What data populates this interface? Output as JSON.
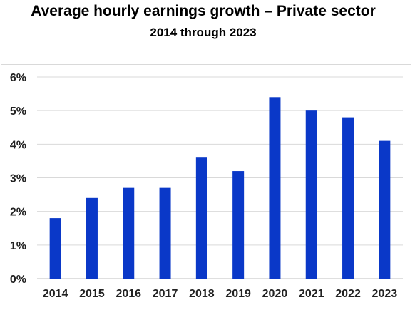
{
  "chart_data": {
    "type": "bar",
    "title": "Average hourly earnings growth – Private sector",
    "subtitle": "2014 through 2023",
    "xlabel": "",
    "ylabel": "",
    "categories": [
      "2014",
      "2015",
      "2016",
      "2017",
      "2018",
      "2019",
      "2020",
      "2021",
      "2022",
      "2023"
    ],
    "values": [
      1.8,
      2.4,
      2.7,
      2.7,
      3.6,
      3.2,
      5.4,
      5.0,
      4.8,
      4.1
    ],
    "ylim": [
      0,
      6
    ],
    "yticks": [
      "0%",
      "1%",
      "2%",
      "3%",
      "4%",
      "5%",
      "6%"
    ],
    "grid": true,
    "legend": "none",
    "colors": {
      "bar": "#0a38c8",
      "grid": "#d9d9d9",
      "axis": "#bfbfbf"
    }
  }
}
